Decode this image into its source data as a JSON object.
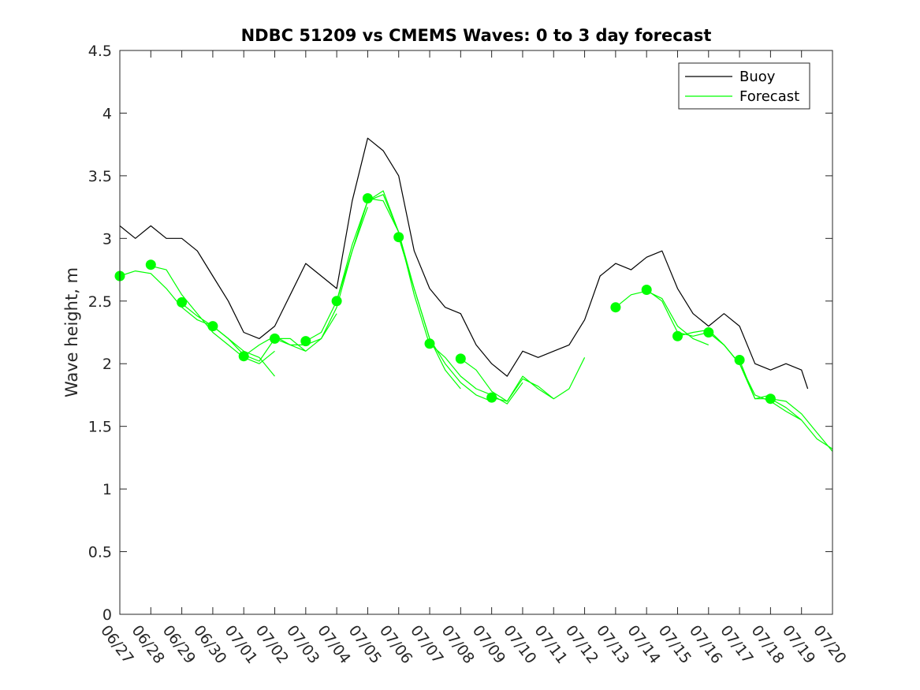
{
  "chart_data": {
    "type": "line",
    "title": "NDBC 51209 vs CMEMS Waves: 0 to 3 day forecast",
    "xlabel": "",
    "ylabel": "Wave height, m",
    "ylim": [
      0,
      4.5
    ],
    "yticks": [
      "0",
      "0.5",
      "1",
      "1.5",
      "2",
      "2.5",
      "3",
      "3.5",
      "4",
      "4.5"
    ],
    "xlim": [
      0,
      23
    ],
    "xticks": [
      "06/27",
      "06/28",
      "06/29",
      "06/30",
      "07/01",
      "07/02",
      "07/03",
      "07/04",
      "07/05",
      "07/06",
      "07/07",
      "07/08",
      "07/09",
      "07/10",
      "07/11",
      "07/12",
      "07/13",
      "07/14",
      "07/15",
      "07/16",
      "07/17",
      "07/18",
      "07/19",
      "07/20"
    ],
    "grid": false,
    "legend": {
      "position": "top-right",
      "entries": [
        "Buoy",
        "Forecast"
      ]
    },
    "colors": {
      "buoy": "#000000",
      "forecast": "#00ff00"
    },
    "series": [
      {
        "name": "Buoy",
        "x": [
          0,
          0.5,
          1,
          1.5,
          2,
          2.5,
          3,
          3.5,
          4,
          4.5,
          5,
          5.5,
          6,
          6.5,
          7,
          7.5,
          8,
          8.5,
          9,
          9.5,
          10,
          10.5,
          11,
          11.5,
          12,
          12.5,
          13,
          13.5,
          14,
          14.5,
          15,
          15.5,
          16,
          16.5,
          17,
          17.5,
          18,
          18.5,
          19,
          19.5,
          20,
          20.5,
          21,
          21.5,
          22,
          22.2
        ],
        "y": [
          3.1,
          3.0,
          3.1,
          3.0,
          3.0,
          2.9,
          2.7,
          2.5,
          2.25,
          2.2,
          2.3,
          2.55,
          2.8,
          2.7,
          2.6,
          3.3,
          3.8,
          3.7,
          3.5,
          2.9,
          2.6,
          2.45,
          2.4,
          2.15,
          2.0,
          1.9,
          2.1,
          2.05,
          2.1,
          2.15,
          2.35,
          2.7,
          2.8,
          2.75,
          2.85,
          2.9,
          2.6,
          2.4,
          2.3,
          2.4,
          2.3,
          2.0,
          1.95,
          2.0,
          1.95,
          1.8
        ]
      }
    ],
    "forecast_runs": [
      {
        "x": [
          0,
          0.5,
          1,
          1.5,
          2,
          2.5,
          3
        ],
        "y": [
          2.7,
          2.74,
          2.72,
          2.6,
          2.45,
          2.35,
          2.3
        ]
      },
      {
        "x": [
          1,
          1.5,
          2,
          2.5,
          3,
          3.5,
          4,
          4.5,
          5
        ],
        "y": [
          2.78,
          2.75,
          2.55,
          2.4,
          2.25,
          2.15,
          2.05,
          2.0,
          2.1
        ]
      },
      {
        "x": [
          2,
          2.5,
          3,
          3.5,
          4,
          4.5,
          5
        ],
        "y": [
          2.48,
          2.38,
          2.3,
          2.2,
          2.1,
          2.05,
          1.9
        ]
      },
      {
        "x": [
          3,
          3.5,
          4,
          4.5,
          5,
          5.5,
          6
        ],
        "y": [
          2.3,
          2.2,
          2.07,
          2.02,
          2.2,
          2.2,
          2.1
        ]
      },
      {
        "x": [
          4,
          4.5,
          5,
          5.5,
          6,
          6.5,
          7
        ],
        "y": [
          2.06,
          2.15,
          2.22,
          2.15,
          2.1,
          2.2,
          2.4
        ]
      },
      {
        "x": [
          5,
          5.5,
          6,
          6.5,
          7,
          7.5,
          8
        ],
        "y": [
          2.2,
          2.15,
          2.15,
          2.2,
          2.45,
          2.9,
          3.25
        ]
      },
      {
        "x": [
          6,
          6.5,
          7,
          7.5,
          8,
          8.5,
          9
        ],
        "y": [
          2.18,
          2.25,
          2.5,
          2.95,
          3.3,
          3.38,
          3.05
        ]
      },
      {
        "x": [
          7,
          7.5,
          8,
          8.5,
          9,
          9.5,
          10
        ],
        "y": [
          2.5,
          2.9,
          3.3,
          3.35,
          3.05,
          2.55,
          2.15
        ]
      },
      {
        "x": [
          8,
          8.5,
          9,
          9.5,
          10,
          10.5,
          11
        ],
        "y": [
          3.32,
          3.3,
          3.05,
          2.6,
          2.2,
          1.95,
          1.8
        ]
      },
      {
        "x": [
          9,
          9.5,
          10,
          10.5,
          11,
          11.5,
          12
        ],
        "y": [
          3.01,
          2.6,
          2.2,
          2.0,
          1.85,
          1.75,
          1.7
        ]
      },
      {
        "x": [
          10,
          10.5,
          11,
          11.5,
          12,
          12.5,
          13
        ],
        "y": [
          2.16,
          2.05,
          1.9,
          1.8,
          1.75,
          1.68,
          1.85
        ]
      },
      {
        "x": [
          11,
          11.5,
          12,
          12.5,
          13,
          13.5,
          14
        ],
        "y": [
          2.04,
          1.95,
          1.78,
          1.7,
          1.9,
          1.8,
          1.72
        ]
      },
      {
        "x": [
          12,
          12.5,
          13,
          13.5,
          14,
          14.5,
          15
        ],
        "y": [
          1.73,
          1.7,
          1.88,
          1.82,
          1.72,
          1.8,
          2.05
        ]
      },
      {
        "x": [
          16,
          16.5,
          17,
          17.5,
          18,
          18.5,
          19
        ],
        "y": [
          2.45,
          2.55,
          2.58,
          2.52,
          2.3,
          2.2,
          2.15
        ]
      },
      {
        "x": [
          17,
          17.5,
          18,
          18.5,
          19,
          19.5,
          20
        ],
        "y": [
          2.59,
          2.5,
          2.25,
          2.22,
          2.25,
          2.15,
          2.0
        ]
      },
      {
        "x": [
          18,
          18.5,
          19,
          19.5,
          20,
          20.5,
          21
        ],
        "y": [
          2.22,
          2.25,
          2.27,
          2.15,
          2.0,
          1.72,
          1.75
        ]
      },
      {
        "x": [
          19,
          19.5,
          20,
          20.5,
          21,
          21.5,
          22
        ],
        "y": [
          2.25,
          2.15,
          2.0,
          1.75,
          1.7,
          1.62,
          1.55
        ]
      },
      {
        "x": [
          20,
          20.5,
          21,
          21.5,
          22,
          22.5,
          23
        ],
        "y": [
          2.03,
          1.72,
          1.72,
          1.65,
          1.55,
          1.4,
          1.32
        ]
      },
      {
        "x": [
          21,
          21.5,
          22,
          22.5,
          23
        ],
        "y": [
          1.72,
          1.7,
          1.6,
          1.45,
          1.3
        ]
      }
    ],
    "forecast_markers": {
      "x": [
        0,
        1,
        2,
        3,
        4,
        5,
        6,
        7,
        8,
        9,
        10,
        11,
        12,
        16,
        17,
        18,
        19,
        20,
        21
      ],
      "y": [
        2.7,
        2.79,
        2.49,
        2.3,
        2.06,
        2.2,
        2.18,
        2.5,
        3.32,
        3.01,
        2.16,
        2.04,
        1.73,
        2.45,
        2.59,
        2.22,
        2.25,
        2.03,
        1.72
      ]
    }
  }
}
